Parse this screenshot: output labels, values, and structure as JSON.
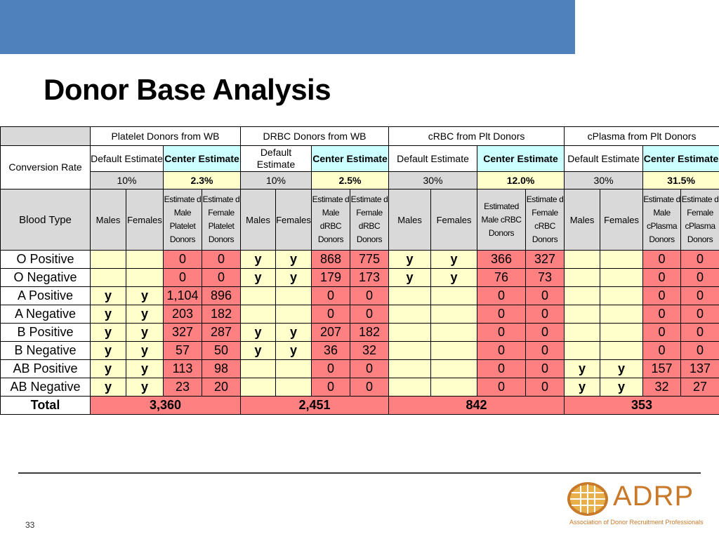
{
  "slide": {
    "title": "Donor Base Analysis",
    "page_number": "33"
  },
  "groups": [
    {
      "name": "Platelet Donors from WB",
      "default_label": "Default Estimate",
      "center_label": "Center Estimate",
      "default_value": "10%",
      "center_value": "2.3%",
      "bt_headers": [
        "Males",
        "Females",
        "Estimate d Male Platelet Donors",
        "Estimate d Female Platelet Donors"
      ]
    },
    {
      "name": "DRBC Donors from WB",
      "default_label": "Default Estimate",
      "center_label": "Center Estimate",
      "default_value": "10%",
      "center_value": "2.5%",
      "bt_headers": [
        "Males",
        "Females",
        "Estimate d Male dRBC Donors",
        "Estimate d Female dRBC Donors"
      ]
    },
    {
      "name": "cRBC from Plt Donors",
      "default_label": "Default Estimate",
      "center_label": "Center Estimate",
      "default_value": "30%",
      "center_value": "12.0%",
      "bt_headers": [
        "Males",
        "Females",
        "Estimated Male cRBC Donors",
        "Estimate d Female cRBC Donors"
      ]
    },
    {
      "name": "cPlasma from Plt Donors",
      "default_label": "Default Estimate",
      "center_label": "Center Estimate",
      "default_value": "30%",
      "center_value": "31.5%",
      "bt_headers": [
        "Males",
        "Females",
        "Estimate d Male cPlasma Donors",
        "Estimate d Female cPlasma Donors"
      ]
    }
  ],
  "labels": {
    "conversion_rate": "Conversion Rate",
    "blood_type": "Blood Type",
    "total": "Total"
  },
  "rows": [
    {
      "type": "O Positive",
      "cells": [
        "",
        "",
        "0",
        "0",
        "y",
        "y",
        "868",
        "775",
        "y",
        "y",
        "366",
        "327",
        "",
        "",
        "0",
        "0"
      ]
    },
    {
      "type": "O Negative",
      "cells": [
        "",
        "",
        "0",
        "0",
        "y",
        "y",
        "179",
        "173",
        "y",
        "y",
        "76",
        "73",
        "",
        "",
        "0",
        "0"
      ]
    },
    {
      "type": "A Positive",
      "cells": [
        "y",
        "y",
        "1,104",
        "896",
        "",
        "",
        "0",
        "0",
        "",
        "",
        "0",
        "0",
        "",
        "",
        "0",
        "0"
      ]
    },
    {
      "type": "A Negative",
      "cells": [
        "y",
        "y",
        "203",
        "182",
        "",
        "",
        "0",
        "0",
        "",
        "",
        "0",
        "0",
        "",
        "",
        "0",
        "0"
      ]
    },
    {
      "type": "B Positive",
      "cells": [
        "y",
        "y",
        "327",
        "287",
        "y",
        "y",
        "207",
        "182",
        "",
        "",
        "0",
        "0",
        "",
        "",
        "0",
        "0"
      ]
    },
    {
      "type": "B Negative",
      "cells": [
        "y",
        "y",
        "57",
        "50",
        "y",
        "y",
        "36",
        "32",
        "",
        "",
        "0",
        "0",
        "",
        "",
        "0",
        "0"
      ]
    },
    {
      "type": "AB Positive",
      "cells": [
        "y",
        "y",
        "113",
        "98",
        "",
        "",
        "0",
        "0",
        "",
        "",
        "0",
        "0",
        "y",
        "y",
        "157",
        "137"
      ]
    },
    {
      "type": "AB Negative",
      "cells": [
        "y",
        "y",
        "23",
        "20",
        "",
        "",
        "0",
        "0",
        "",
        "",
        "0",
        "0",
        "y",
        "y",
        "32",
        "27"
      ]
    }
  ],
  "totals": [
    "3,360",
    "2,451",
    "842",
    "353"
  ],
  "logo": {
    "wordmark": "ADRP",
    "tagline": "Association of Donor Recruitment Professionals"
  },
  "colors": {
    "header_bar": "#4f81bd",
    "gray_header": "#d9d9d9",
    "yellow_cell": "#ffffcc",
    "cyan_cell": "#ccffff",
    "pink_cell": "#ff8080",
    "logo_orange": "#c8792a"
  }
}
